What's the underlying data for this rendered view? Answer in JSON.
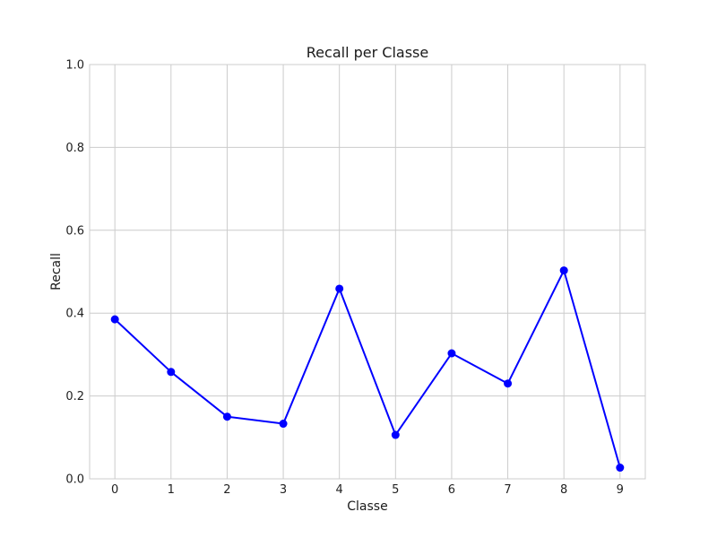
{
  "chart_data": {
    "type": "line",
    "title": "Recall per Classe",
    "xlabel": "Classe",
    "ylabel": "Recall",
    "x": [
      0,
      1,
      2,
      3,
      4,
      5,
      6,
      7,
      8,
      9
    ],
    "xticks": [
      "0",
      "1",
      "2",
      "3",
      "4",
      "5",
      "6",
      "7",
      "8",
      "9"
    ],
    "yticks": [
      "0.0",
      "0.2",
      "0.4",
      "0.6",
      "0.8",
      "1.0"
    ],
    "ylim": [
      0,
      1
    ],
    "xlim": [
      -0.45,
      9.45
    ],
    "grid": true,
    "series": [
      {
        "values": [
          0.385,
          0.258,
          0.15,
          0.133,
          0.459,
          0.106,
          0.303,
          0.23,
          0.503,
          0.027
        ],
        "color": "#0000ff",
        "marker": "circle"
      }
    ]
  }
}
